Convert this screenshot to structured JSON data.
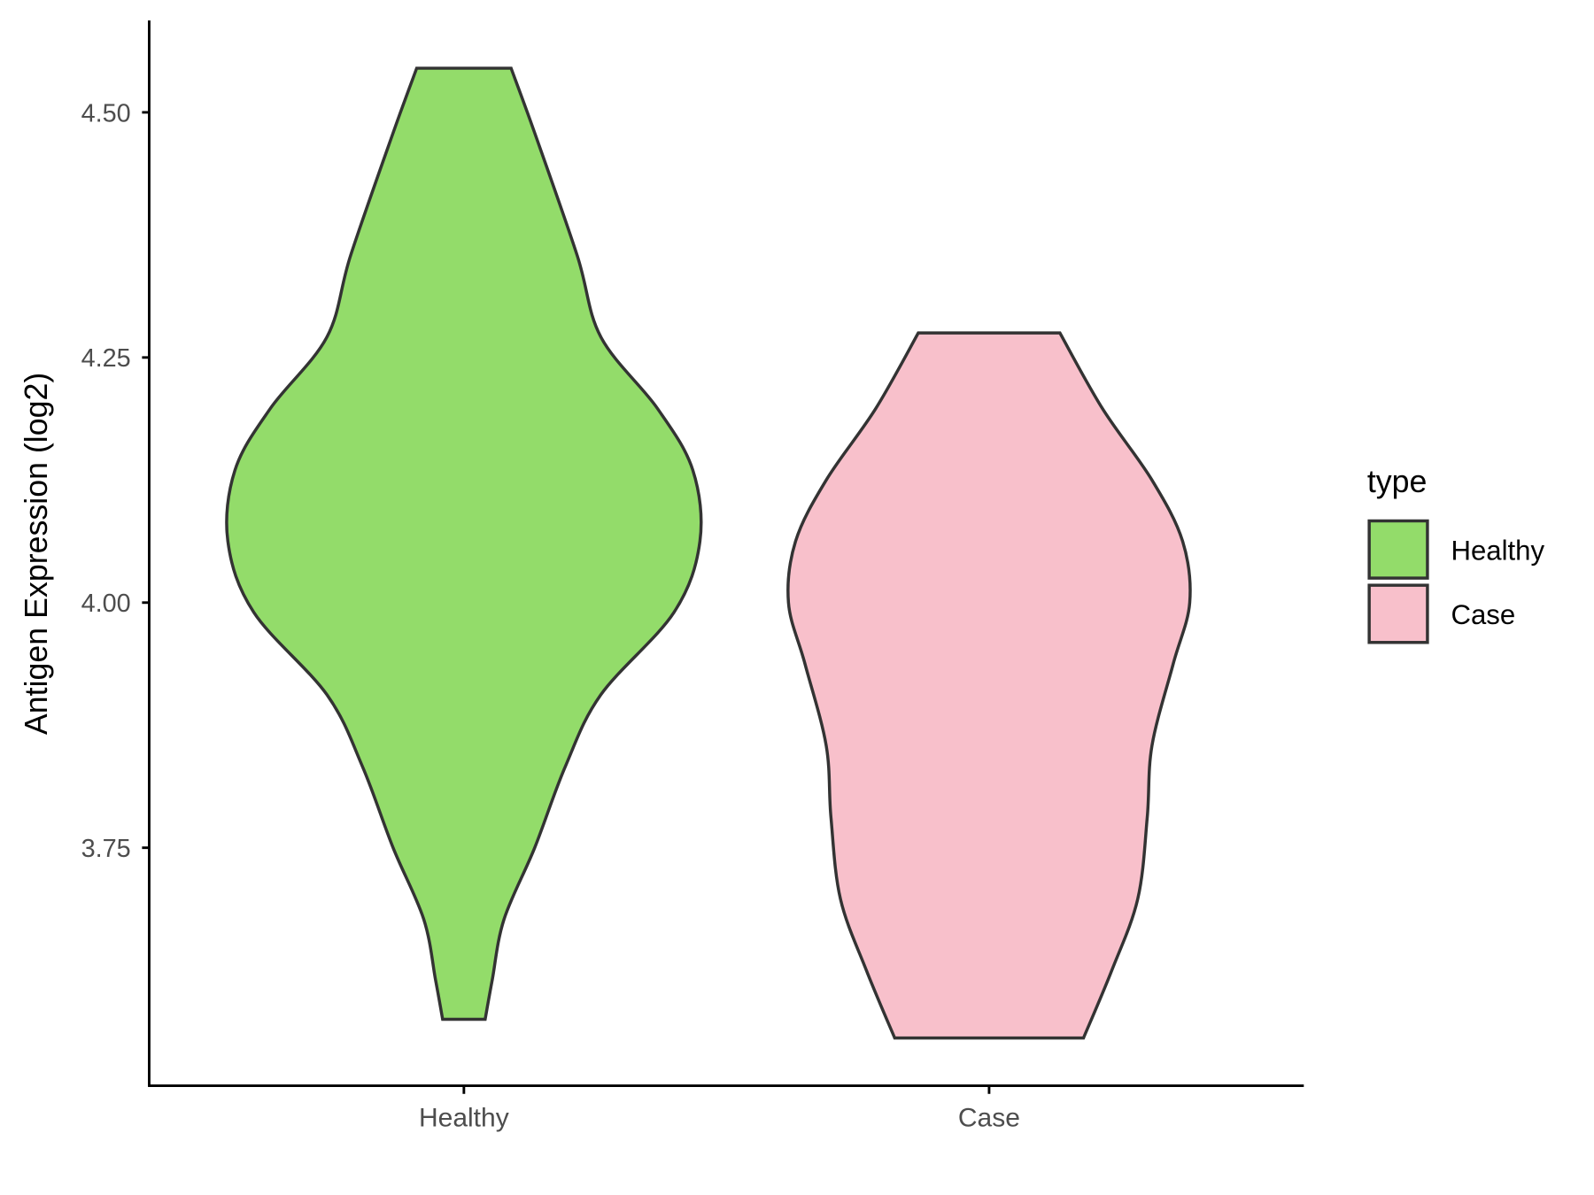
{
  "chart_data": {
    "type": "violin",
    "title": "",
    "xlabel": "",
    "ylabel": "Antigen Expression (log2)",
    "ylim": [
      3.47,
      4.59
    ],
    "yticks": [
      3.75,
      4.0,
      4.25,
      4.5
    ],
    "ytick_labels": [
      "3.75",
      "4.00",
      "4.25",
      "4.50"
    ],
    "categories": [
      "Healthy",
      "Case"
    ],
    "grid": false,
    "legend": {
      "title": "type",
      "position": "right",
      "entries": [
        "Healthy",
        "Case"
      ]
    },
    "series": [
      {
        "name": "Healthy",
        "color": "#93DC6A",
        "profile": [
          [
            4.545,
            0.2
          ],
          [
            4.479,
            0.3
          ],
          [
            4.354,
            0.48
          ],
          [
            4.271,
            0.58
          ],
          [
            4.198,
            0.82
          ],
          [
            4.135,
            0.97
          ],
          [
            4.0625,
            1.0
          ],
          [
            3.99,
            0.89
          ],
          [
            3.906,
            0.58
          ],
          [
            3.833,
            0.43
          ],
          [
            3.75,
            0.3
          ],
          [
            3.677,
            0.17
          ],
          [
            3.615,
            0.12
          ],
          [
            3.575,
            0.09
          ]
        ]
      },
      {
        "name": "Case",
        "color": "#F8C0CB",
        "profile": [
          [
            4.275,
            0.3
          ],
          [
            4.198,
            0.48
          ],
          [
            4.125,
            0.69
          ],
          [
            4.0625,
            0.82
          ],
          [
            4.0,
            0.85
          ],
          [
            3.9375,
            0.78
          ],
          [
            3.854,
            0.69
          ],
          [
            3.781,
            0.67
          ],
          [
            3.698,
            0.63
          ],
          [
            3.625,
            0.52
          ],
          [
            3.556,
            0.4
          ]
        ]
      }
    ],
    "outline_color": "#333333"
  }
}
